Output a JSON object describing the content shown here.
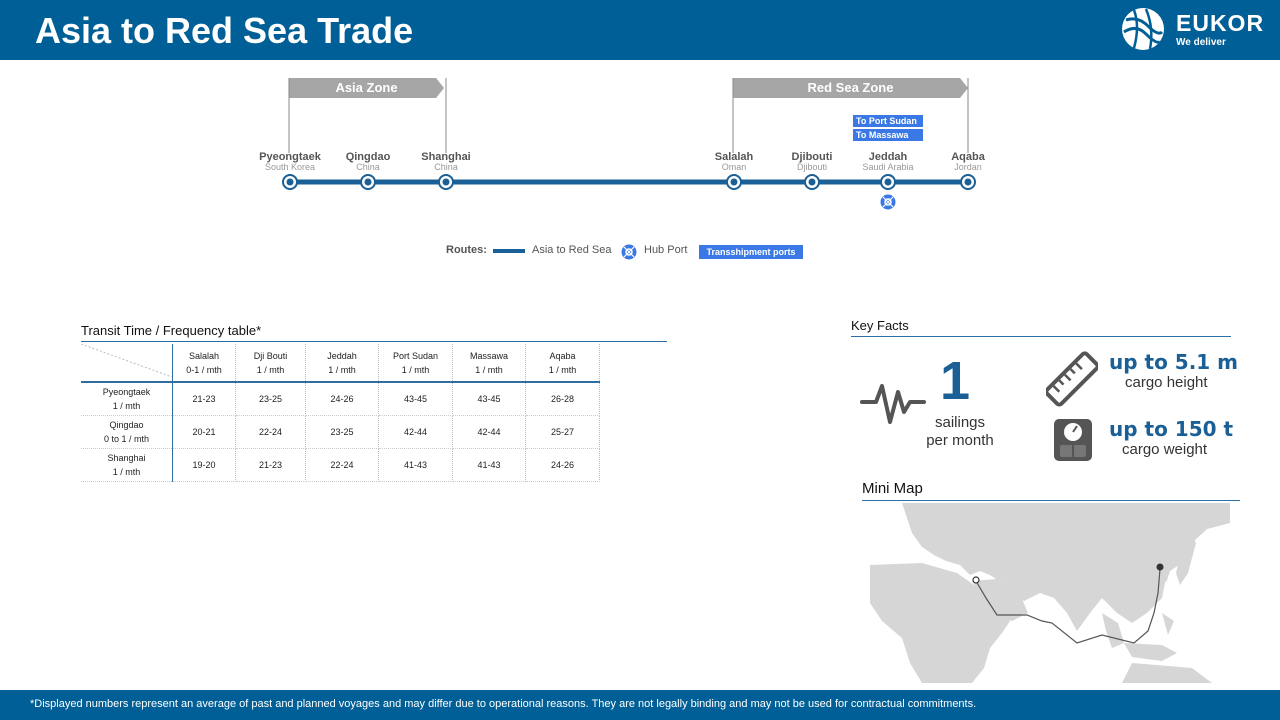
{
  "header": {
    "title": "Asia to Red Sea Trade"
  },
  "logo": {
    "name": "EUKOR",
    "tagline": "We deliver"
  },
  "route": {
    "zones": [
      "Asia Zone",
      "Red Sea Zone"
    ],
    "ports": [
      {
        "name": "Pyeongtaek",
        "country": "South Korea"
      },
      {
        "name": "Qingdao",
        "country": "China"
      },
      {
        "name": "Shanghai",
        "country": "China"
      },
      {
        "name": "Salalah",
        "country": "Oman"
      },
      {
        "name": "Djibouti",
        "country": "Djibouti"
      },
      {
        "name": "Jeddah",
        "country": "Saudi Arabia"
      },
      {
        "name": "Aqaba",
        "country": "Jordan"
      }
    ],
    "transshipment": [
      "To Port Sudan",
      "To Massawa"
    ]
  },
  "legend": {
    "routes_label": "Routes:",
    "route_name": "Asia to Red Sea",
    "hub_port": "Hub Port",
    "transshipment": "Transshipment ports"
  },
  "table": {
    "title": "Transit Time / Frequency table*",
    "columns": [
      {
        "port": "Salalah",
        "freq": "0-1 / mth"
      },
      {
        "port": "Dji Bouti",
        "freq": "1 / mth"
      },
      {
        "port": "Jeddah",
        "freq": "1 / mth"
      },
      {
        "port": "Port Sudan",
        "freq": "1 / mth"
      },
      {
        "port": "Massawa",
        "freq": "1 / mth"
      },
      {
        "port": "Aqaba",
        "freq": "1 / mth"
      }
    ],
    "rows": [
      {
        "port": "Pyeongtaek",
        "freq": "1 / mth",
        "values": [
          "21-23",
          "23-25",
          "24-26",
          "43-45",
          "43-45",
          "26-28"
        ]
      },
      {
        "port": "Qingdao",
        "freq": "0 to 1 / mth",
        "values": [
          "20-21",
          "22-24",
          "23-25",
          "42-44",
          "42-44",
          "25-27"
        ]
      },
      {
        "port": "Shanghai",
        "freq": "1  / mth",
        "values": [
          "19-20",
          "21-23",
          "22-24",
          "41-43",
          "41-43",
          "24-26"
        ]
      }
    ]
  },
  "key_facts": {
    "title": "Key Facts",
    "sailings_value": "1",
    "sailings_label_1": "sailings",
    "sailings_label_2": "per month",
    "height_value": "up to 5.1 m",
    "height_label": "cargo height",
    "weight_value": "up to 150 t",
    "weight_label": "cargo weight",
    "icons": [
      "pulse-icon",
      "ruler-icon",
      "scale-icon"
    ]
  },
  "mini_map": {
    "title": "Mini Map"
  },
  "footer": {
    "note": "*Displayed numbers represent  an average of past and planned voyages and may differ due to operational reasons. They are not legally binding and may not be used for contractual commitments."
  },
  "colors": {
    "brand": "#005f96",
    "route": "#1a5f95",
    "transshipment": "#3a78e6",
    "zone": "#a6a6a6"
  }
}
